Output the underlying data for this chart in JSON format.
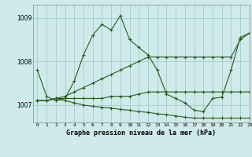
{
  "title": "Graphe pression niveau de la mer (hPa)",
  "background_color": "#ceeaea",
  "line_color": "#2d5a1b",
  "grid_color": "#aacaca",
  "xlim": [
    -0.5,
    23
  ],
  "ylim": [
    1006.6,
    1009.3
  ],
  "yticks": [
    1007,
    1008,
    1009
  ],
  "xticks": [
    0,
    1,
    2,
    3,
    4,
    5,
    6,
    7,
    8,
    9,
    10,
    11,
    12,
    13,
    14,
    15,
    16,
    17,
    18,
    19,
    20,
    21,
    22,
    23
  ],
  "series": [
    [
      1007.8,
      1007.2,
      1007.1,
      1007.15,
      1007.55,
      1008.15,
      1008.6,
      1008.85,
      1008.72,
      1009.05,
      1008.5,
      1008.32,
      1008.15,
      1007.8,
      1007.25,
      1007.15,
      1007.05,
      1006.88,
      1006.85,
      1007.15,
      1007.18,
      1007.8,
      1008.55,
      1008.65
    ],
    [
      1007.1,
      1007.1,
      1007.15,
      1007.2,
      1007.3,
      1007.4,
      1007.5,
      1007.6,
      1007.7,
      1007.8,
      1007.9,
      1008.0,
      1008.1,
      1008.1,
      1008.1,
      1008.1,
      1008.1,
      1008.1,
      1008.1,
      1008.1,
      1008.1,
      1008.1,
      1008.5,
      1008.65
    ],
    [
      1007.1,
      1007.1,
      1007.15,
      1007.15,
      1007.15,
      1007.15,
      1007.15,
      1007.15,
      1007.2,
      1007.2,
      1007.2,
      1007.25,
      1007.3,
      1007.3,
      1007.3,
      1007.3,
      1007.3,
      1007.3,
      1007.3,
      1007.3,
      1007.3,
      1007.3,
      1007.3,
      1007.3
    ],
    [
      1007.1,
      1007.1,
      1007.15,
      1007.1,
      1007.05,
      1007.0,
      1006.97,
      1006.95,
      1006.93,
      1006.9,
      1006.88,
      1006.85,
      1006.83,
      1006.8,
      1006.78,
      1006.75,
      1006.72,
      1006.7,
      1006.7,
      1006.7,
      1006.7,
      1006.7,
      1006.7,
      1006.7
    ]
  ]
}
